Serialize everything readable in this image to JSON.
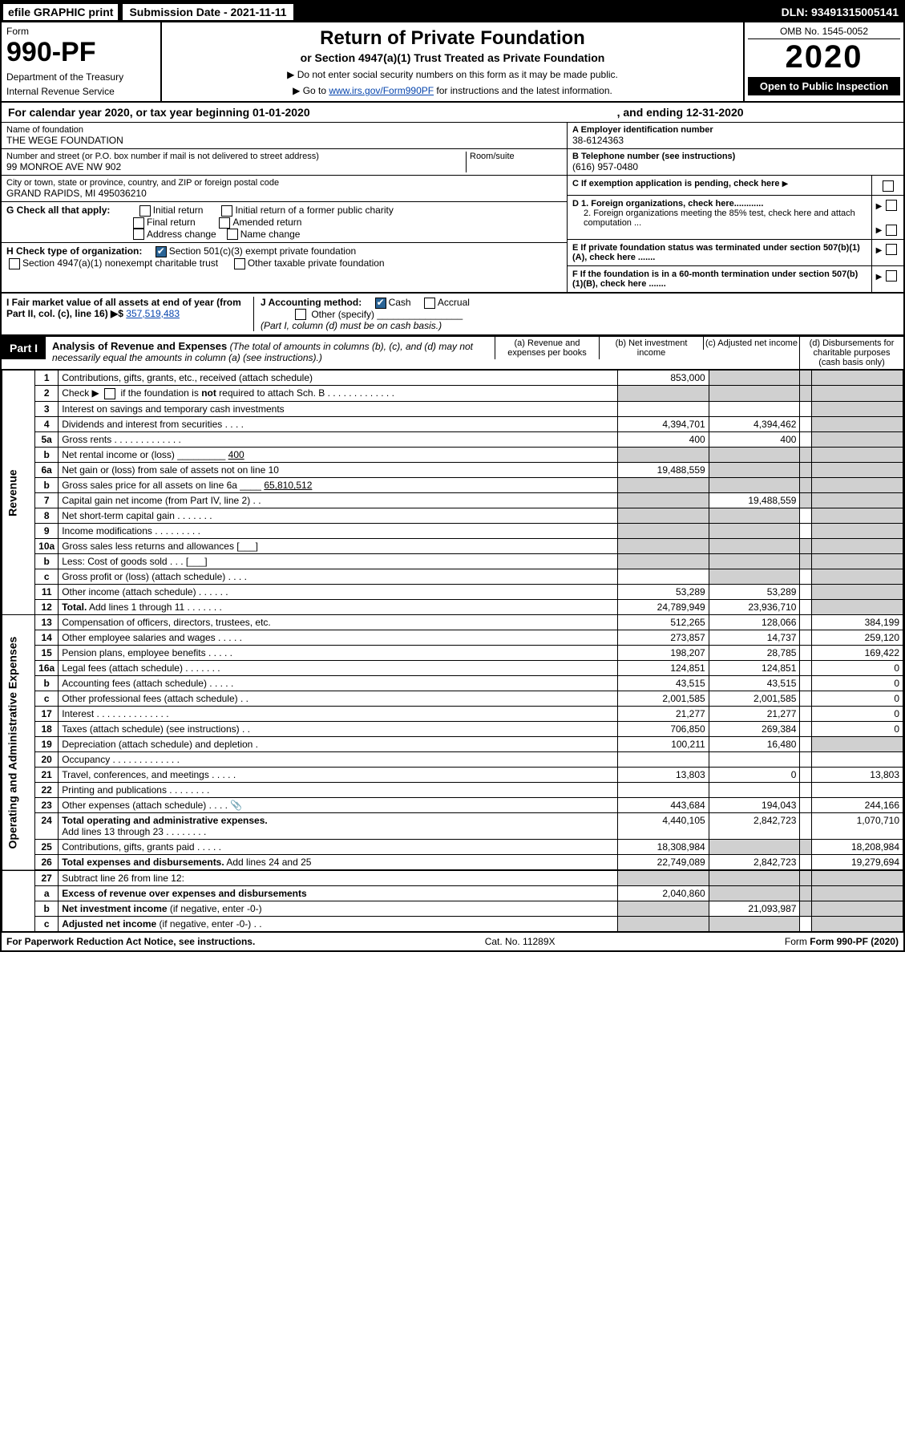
{
  "topbar": {
    "efile": "efile GRAPHIC print",
    "subdate_label": "Submission Date - 2021-11-11",
    "dln": "DLN: 93491315005141"
  },
  "head": {
    "form_label": "Form",
    "form_num": "990-PF",
    "dept1": "Department of the Treasury",
    "dept2": "Internal Revenue Service",
    "title": "Return of Private Foundation",
    "subtitle": "or Section 4947(a)(1) Trust Treated as Private Foundation",
    "note1": "▶ Do not enter social security numbers on this form as it may be made public.",
    "note2_pre": "▶ Go to ",
    "note2_link": "www.irs.gov/Form990PF",
    "note2_post": " for instructions and the latest information.",
    "omb": "OMB No. 1545-0052",
    "year": "2020",
    "inspect": "Open to Public Inspection"
  },
  "calyear": {
    "pre": "For calendar year 2020, or tax year beginning 01-01-2020",
    "mid": "",
    "end": ", and ending 12-31-2020"
  },
  "info_left": {
    "name_lbl": "Name of foundation",
    "name": "THE WEGE FOUNDATION",
    "addr_lbl": "Number and street (or P.O. box number if mail is not delivered to street address)",
    "addr": "99 MONROE AVE NW 902",
    "room_lbl": "Room/suite",
    "city_lbl": "City or town, state or province, country, and ZIP or foreign postal code",
    "city": "GRAND RAPIDS, MI  495036210"
  },
  "info_right": {
    "a_lbl": "A Employer identification number",
    "a_val": "38-6124363",
    "b_lbl": "B Telephone number (see instructions)",
    "b_val": "(616) 957-0480",
    "c_lbl": "C If exemption application is pending, check here",
    "d1": "D 1. Foreign organizations, check here............",
    "d2": "2. Foreign organizations meeting the 85% test, check here and attach computation ...",
    "e": "E  If private foundation status was terminated under section 507(b)(1)(A), check here .......",
    "f": "F  If the foundation is in a 60-month termination under section 507(b)(1)(B), check here .......",
    "colors": {
      "checked_bg": "#2a6496"
    }
  },
  "g_section": {
    "g_lbl": "G Check all that apply:",
    "opts": [
      "Initial return",
      "Final return",
      "Address change",
      "Initial return of a former public charity",
      "Amended return",
      "Name change"
    ],
    "h_lbl": "H Check type of organization:",
    "h_opt1": "Section 501(c)(3) exempt private foundation",
    "h_opt2": "Section 4947(a)(1) nonexempt charitable trust",
    "h_opt3": "Other taxable private foundation",
    "i_lbl": "I Fair market value of all assets at end of year (from Part II, col. (c), line 16) ▶$",
    "i_val": "357,519,483",
    "j_lbl": "J Accounting method:",
    "j_opts": [
      "Cash",
      "Accrual"
    ],
    "j_other": "Other (specify)",
    "j_note": "(Part I, column (d) must be on cash basis.)"
  },
  "part1": {
    "badge": "Part I",
    "title": "Analysis of Revenue and Expenses",
    "note": "(The total of amounts in columns (b), (c), and (d) may not necessarily equal the amounts in column (a) (see instructions).)",
    "col_a": "(a)   Revenue and expenses per books",
    "col_b": "(b)   Net investment income",
    "col_c": "(c)   Adjusted net income",
    "col_d": "(d)   Disbursements for charitable purposes (cash basis only)"
  },
  "vert": {
    "revenue": "Revenue",
    "opex": "Operating and Administrative Expenses"
  },
  "rows": [
    {
      "n": "1",
      "d": "",
      "a": "853,000",
      "b": "",
      "c": "",
      "shade": [
        "b",
        "c",
        "d"
      ]
    },
    {
      "n": "2",
      "d": "",
      "a": "",
      "b": "",
      "c": "",
      "shade": [
        "a",
        "b",
        "c",
        "d"
      ],
      "html": true
    },
    {
      "n": "3",
      "d": "",
      "a": "",
      "b": "",
      "c": "",
      "shade": [
        "d"
      ]
    },
    {
      "n": "4",
      "d": "",
      "a": "4,394,701",
      "b": "4,394,462",
      "c": "",
      "shade": [
        "d"
      ]
    },
    {
      "n": "5a",
      "d": "",
      "a": "400",
      "b": "400",
      "c": "",
      "shade": [
        "d"
      ]
    },
    {
      "n": "b",
      "d": "",
      "a": "",
      "b": "",
      "c": "",
      "shade": [
        "a",
        "b",
        "c",
        "d"
      ]
    },
    {
      "n": "6a",
      "d": "",
      "a": "19,488,559",
      "b": "",
      "c": "",
      "shade": [
        "b",
        "c",
        "d"
      ]
    },
    {
      "n": "b",
      "d": "",
      "a": "",
      "b": "",
      "c": "",
      "shade": [
        "a",
        "b",
        "c",
        "d"
      ]
    },
    {
      "n": "7",
      "d": "",
      "a": "",
      "b": "19,488,559",
      "c": "",
      "shade": [
        "a",
        "c",
        "d"
      ]
    },
    {
      "n": "8",
      "d": "",
      "a": "",
      "b": "",
      "c": "",
      "shade": [
        "a",
        "b",
        "d"
      ]
    },
    {
      "n": "9",
      "d": "",
      "a": "",
      "b": "",
      "c": "",
      "shade": [
        "a",
        "b",
        "d"
      ]
    },
    {
      "n": "10a",
      "d": "",
      "a": "",
      "b": "",
      "c": "",
      "shade": [
        "a",
        "b",
        "c",
        "d"
      ]
    },
    {
      "n": "b",
      "d": "",
      "a": "",
      "b": "",
      "c": "",
      "shade": [
        "a",
        "b",
        "c",
        "d"
      ]
    },
    {
      "n": "c",
      "d": "",
      "a": "",
      "b": "",
      "c": "",
      "shade": [
        "b",
        "d"
      ]
    },
    {
      "n": "11",
      "d": "",
      "a": "53,289",
      "b": "53,289",
      "c": "",
      "shade": [
        "d"
      ]
    },
    {
      "n": "12",
      "d": "",
      "a": "24,789,949",
      "b": "23,936,710",
      "c": "",
      "shade": [
        "d"
      ],
      "html": true
    }
  ],
  "oprows": [
    {
      "n": "13",
      "d": "384,199",
      "a": "512,265",
      "b": "128,066",
      "c": ""
    },
    {
      "n": "14",
      "d": "259,120",
      "a": "273,857",
      "b": "14,737",
      "c": ""
    },
    {
      "n": "15",
      "d": "169,422",
      "a": "198,207",
      "b": "28,785",
      "c": ""
    },
    {
      "n": "16a",
      "d": "0",
      "a": "124,851",
      "b": "124,851",
      "c": ""
    },
    {
      "n": "b",
      "d": "0",
      "a": "43,515",
      "b": "43,515",
      "c": ""
    },
    {
      "n": "c",
      "d": "0",
      "a": "2,001,585",
      "b": "2,001,585",
      "c": ""
    },
    {
      "n": "17",
      "d": "0",
      "a": "21,277",
      "b": "21,277",
      "c": ""
    },
    {
      "n": "18",
      "d": "0",
      "a": "706,850",
      "b": "269,384",
      "c": ""
    },
    {
      "n": "19",
      "d": "",
      "a": "100,211",
      "b": "16,480",
      "c": "",
      "shade": [
        "d"
      ]
    },
    {
      "n": "20",
      "d": "",
      "a": "",
      "b": "",
      "c": ""
    },
    {
      "n": "21",
      "d": "13,803",
      "a": "13,803",
      "b": "0",
      "c": ""
    },
    {
      "n": "22",
      "d": "",
      "a": "",
      "b": "",
      "c": ""
    },
    {
      "n": "23",
      "d": "244,166",
      "a": "443,684",
      "b": "194,043",
      "c": ""
    },
    {
      "n": "24",
      "d": "1,070,710",
      "a": "4,440,105",
      "b": "2,842,723",
      "c": "",
      "html": true
    },
    {
      "n": "25",
      "d": "18,208,984",
      "a": "18,308,984",
      "b": "",
      "c": "",
      "shade": [
        "b",
        "c"
      ]
    },
    {
      "n": "26",
      "d": "19,279,694",
      "a": "22,749,089",
      "b": "2,842,723",
      "c": "",
      "html": true
    }
  ],
  "netrows": [
    {
      "n": "27",
      "d": "",
      "a": "",
      "b": "",
      "c": "",
      "shade": [
        "a",
        "b",
        "c",
        "d"
      ]
    },
    {
      "n": "a",
      "d": "",
      "a": "2,040,860",
      "b": "",
      "c": "",
      "shade": [
        "b",
        "c",
        "d"
      ],
      "html": true
    },
    {
      "n": "b",
      "d": "",
      "a": "",
      "b": "21,093,987",
      "c": "",
      "shade": [
        "a",
        "c",
        "d"
      ],
      "html": true
    },
    {
      "n": "c",
      "d": "",
      "a": "",
      "b": "",
      "c": "",
      "shade": [
        "a",
        "b",
        "d"
      ],
      "html": true
    }
  ],
  "footer": {
    "left": "For Paperwork Reduction Act Notice, see instructions.",
    "mid": "Cat. No. 11289X",
    "right": "Form 990-PF (2020)"
  },
  "style": {
    "link_color": "#0645ad",
    "shade_color": "#d0d0d0",
    "col_widths": {
      "lineno": 28,
      "desc": "auto",
      "a": 130,
      "b": 130,
      "c": 120,
      "d": 130
    }
  }
}
